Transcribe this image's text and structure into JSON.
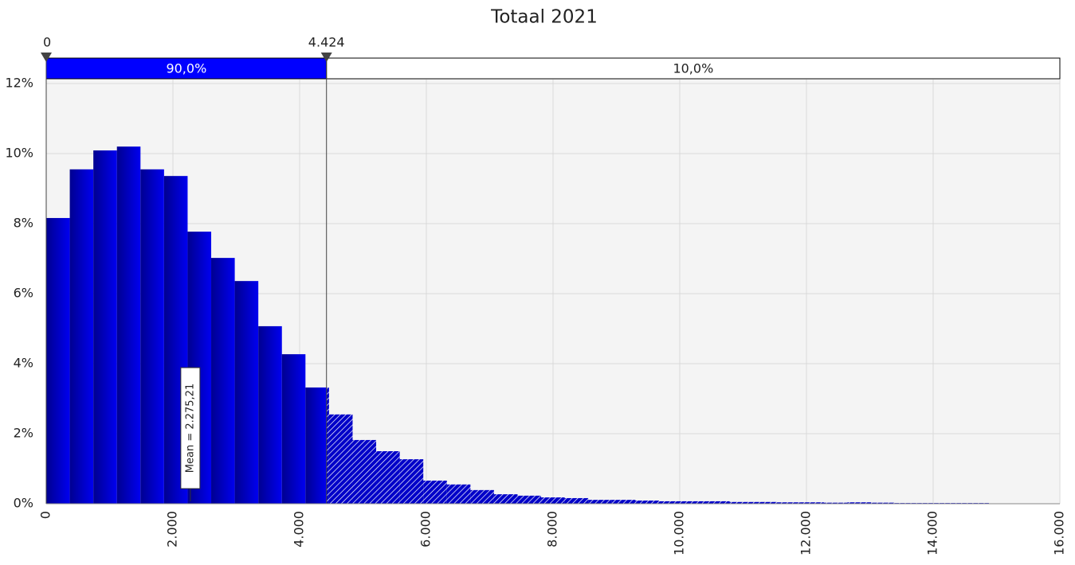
{
  "chart_data": {
    "type": "histogram",
    "title": "Totaal 2021",
    "bins": [
      0,
      372,
      744,
      1116,
      1488,
      1860,
      2232,
      2604,
      2976,
      3348,
      3720,
      4092,
      4464,
      4836,
      5208,
      5580,
      5952,
      6324,
      6696,
      7068,
      7440,
      7812,
      8184,
      8556,
      8928,
      9300,
      9672,
      10044,
      10416,
      10788,
      11160,
      11532,
      11904,
      12276,
      12648,
      13020,
      13392,
      13764,
      14136,
      14508,
      14880
    ],
    "values": [
      8.16,
      9.55,
      10.09,
      10.2,
      9.55,
      9.36,
      7.77,
      7.02,
      6.36,
      5.07,
      4.27,
      3.32,
      2.55,
      1.82,
      1.5,
      1.27,
      0.66,
      0.55,
      0.39,
      0.27,
      0.23,
      0.18,
      0.16,
      0.11,
      0.11,
      0.09,
      0.07,
      0.07,
      0.07,
      0.05,
      0.05,
      0.04,
      0.04,
      0.03,
      0.04,
      0.03,
      0.02,
      0.02,
      0.02,
      0.02
    ],
    "color": "#0000e0",
    "xlim": [
      0,
      16000
    ],
    "xticks": [
      0,
      {
        "value": 2000,
        "label": "2.000"
      },
      {
        "value": 4000,
        "label": "4.000"
      },
      {
        "value": 6000,
        "label": "6.000"
      },
      {
        "value": 8000,
        "label": "8.000"
      },
      {
        "value": 10000,
        "label": "10.000"
      },
      {
        "value": 12000,
        "label": "12.000"
      },
      {
        "value": 14000,
        "label": "14.000"
      },
      {
        "value": 16000,
        "label": "16.000"
      }
    ],
    "ylim": [
      0,
      12
    ],
    "yticks": [
      {
        "value": 0,
        "label": "0%"
      },
      {
        "value": 2,
        "label": "2%"
      },
      {
        "value": 4,
        "label": "4%"
      },
      {
        "value": 6,
        "label": "6%"
      },
      {
        "value": 8,
        "label": "8%"
      },
      {
        "value": 10,
        "label": "10%"
      },
      {
        "value": 12,
        "label": "12%"
      }
    ],
    "grid": true,
    "delimiters": [
      {
        "value": 0,
        "label": "0"
      },
      {
        "value": 4424,
        "label": "4.424"
      }
    ],
    "regions": [
      {
        "value": 90,
        "label": "90,0%"
      },
      {
        "value": 10,
        "label": "10,0%"
      }
    ],
    "mean": {
      "value": 2275.21,
      "label": "Mean = 2.275,21"
    }
  }
}
